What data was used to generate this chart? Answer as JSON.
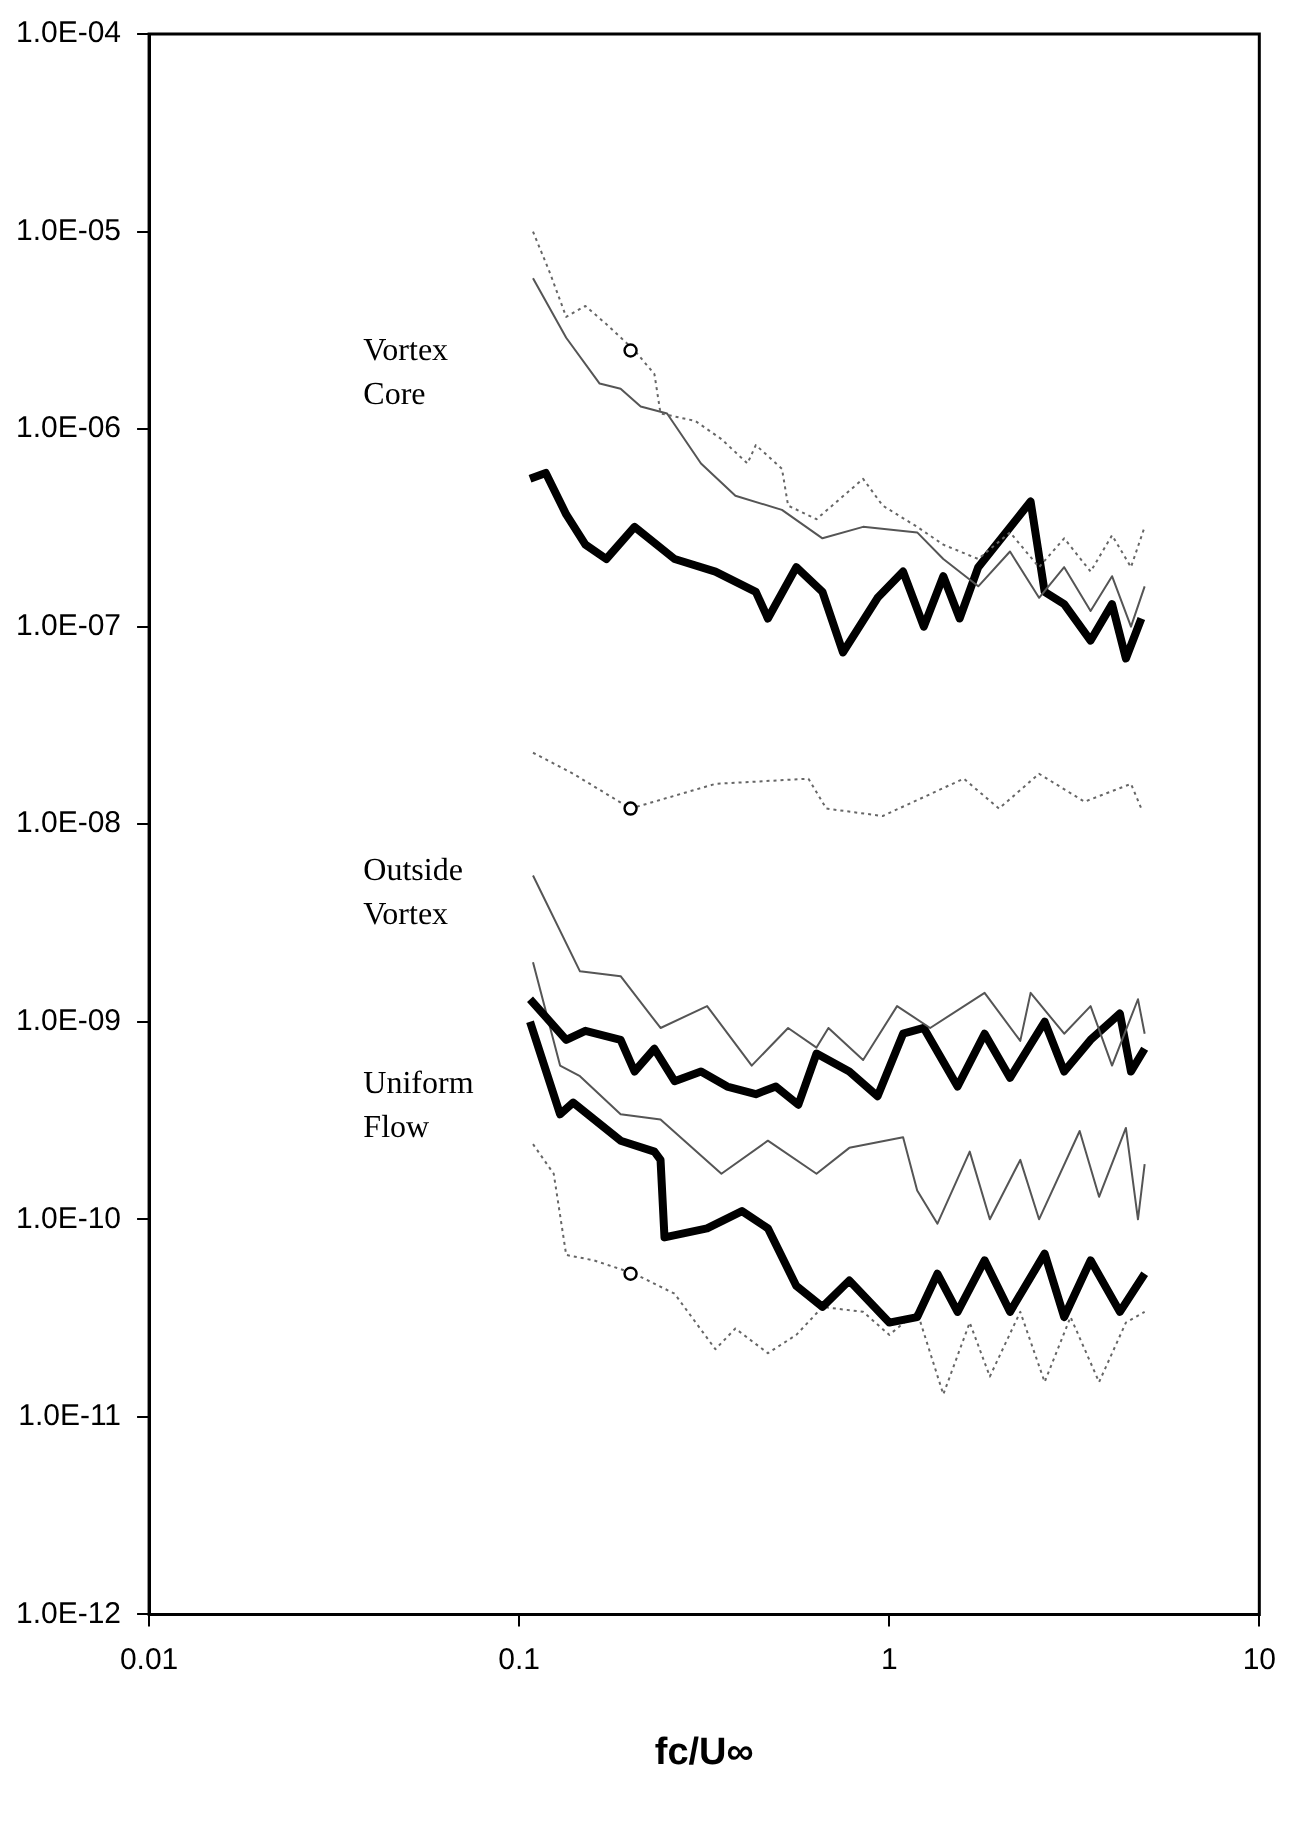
{
  "chart_data": {
    "type": "line",
    "xlabel": "fc/U∞",
    "log": "xy",
    "grid": false,
    "legend": false,
    "marker": "none",
    "xlim": [
      0.01,
      10
    ],
    "xticks": [
      0.01,
      0.1,
      1,
      10
    ],
    "ylim": [
      1e-12,
      0.0001
    ],
    "yticks": [
      {
        "value": 1e-12,
        "label": "1.0E-12"
      },
      {
        "value": 1e-11,
        "label": "1.0E-11"
      },
      {
        "value": 1e-10,
        "label": "1.0E-10"
      },
      {
        "value": 1e-09,
        "label": "1.0E-09"
      },
      {
        "value": 1e-08,
        "label": "1.0E-08"
      },
      {
        "value": 1e-07,
        "label": "1.0E-07"
      },
      {
        "value": 1e-06,
        "label": "1.0E-06"
      },
      {
        "value": 1e-05,
        "label": "1.0E-05"
      },
      {
        "value": 0.0001,
        "label": "1.0E-04"
      }
    ],
    "annotations": [
      "Vortex\nCore",
      "Outside\nVortex",
      "Uniform\nFlow"
    ],
    "series": [
      {
        "color": "#666666",
        "line_style": "dotted",
        "x": [
          0.109,
          0.121,
          0.134,
          0.151,
          0.172,
          0.205,
          0.232,
          0.241,
          0.299,
          0.352,
          0.414,
          0.436,
          0.513,
          0.533,
          0.636,
          0.85,
          0.96,
          1.19,
          1.4,
          1.74,
          2.12,
          2.54,
          2.97,
          3.5,
          4.0,
          4.5,
          4.9
        ],
        "values": [
          1e-05,
          6.2e-06,
          3.7e-06,
          4.2e-06,
          3.4e-06,
          2.5e-06,
          1.9e-06,
          1.2e-06,
          1.1e-06,
          8.9e-07,
          6.7e-07,
          8.3e-07,
          6.3e-07,
          4.1e-07,
          3.5e-07,
          5.6e-07,
          4.1e-07,
          3.2e-07,
          2.6e-07,
          2.2e-07,
          3e-07,
          2e-07,
          2.8e-07,
          1.9e-07,
          2.9e-07,
          2e-07,
          3.2e-07
        ]
      },
      {
        "color": "#555555",
        "line_style": "solid",
        "x": [
          0.109,
          0.134,
          0.165,
          0.188,
          0.213,
          0.251,
          0.31,
          0.384,
          0.513,
          0.66,
          0.85,
          1.19,
          1.4,
          1.74,
          2.12,
          2.54,
          2.97,
          3.5,
          4.0,
          4.5,
          4.9
        ],
        "values": [
          5.8e-06,
          2.9e-06,
          1.7e-06,
          1.6e-06,
          1.3e-06,
          1.2e-06,
          6.7e-07,
          4.6e-07,
          3.9e-07,
          2.8e-07,
          3.2e-07,
          3e-07,
          2.2e-07,
          1.6e-07,
          2.4e-07,
          1.4e-07,
          2e-07,
          1.2e-07,
          1.8e-07,
          1e-07,
          1.6e-07
        ]
      },
      {
        "color": "#000000",
        "line_style": "solid",
        "x": [
          0.107,
          0.118,
          0.134,
          0.151,
          0.172,
          0.205,
          0.263,
          0.339,
          0.436,
          0.47,
          0.561,
          0.66,
          0.75,
          0.93,
          1.09,
          1.24,
          1.4,
          1.55,
          1.74,
          2.41,
          2.63,
          2.97,
          3.5,
          4.0,
          4.36,
          4.8
        ],
        "values": [
          5.6e-07,
          6e-07,
          3.7e-07,
          2.6e-07,
          2.2e-07,
          3.2e-07,
          2.2e-07,
          1.9e-07,
          1.5e-07,
          1.1e-07,
          2e-07,
          1.5e-07,
          7.4e-08,
          1.4e-07,
          1.9e-07,
          1e-07,
          1.8e-07,
          1.1e-07,
          2e-07,
          4.3e-07,
          1.5e-07,
          1.3e-07,
          8.5e-08,
          1.3e-07,
          6.9e-08,
          1.1e-07
        ]
      },
      {
        "color": "#666666",
        "line_style": "dotted",
        "x": [
          0.109,
          0.14,
          0.2,
          0.339,
          0.605,
          0.676,
          0.96,
          1.59,
          1.98,
          2.54,
          3.37,
          4.5,
          4.8
        ],
        "values": [
          2.3e-08,
          1.8e-08,
          1.2e-08,
          1.6e-08,
          1.7e-08,
          1.2e-08,
          1.1e-08,
          1.7e-08,
          1.2e-08,
          1.8e-08,
          1.3e-08,
          1.6e-08,
          1.2e-08
        ]
      },
      {
        "color": "#555555",
        "line_style": "solid",
        "x": [
          0.109,
          0.146,
          0.188,
          0.241,
          0.322,
          0.425,
          0.533,
          0.636,
          0.685,
          0.85,
          1.05,
          1.29,
          1.81,
          2.26,
          2.41,
          2.97,
          3.5,
          4.0,
          4.7,
          4.9
        ],
        "values": [
          5.5e-09,
          1.8e-09,
          1.7e-09,
          9.3e-10,
          1.2e-09,
          6e-10,
          9.3e-10,
          7.4e-10,
          9.3e-10,
          6.4e-10,
          1.2e-09,
          9.3e-10,
          1.4e-09,
          8e-10,
          1.4e-09,
          8.7e-10,
          1.2e-09,
          6e-10,
          1.3e-09,
          8.7e-10
        ]
      },
      {
        "color": "#000000",
        "line_style": "solid",
        "x": [
          0.107,
          0.134,
          0.151,
          0.188,
          0.205,
          0.232,
          0.263,
          0.31,
          0.365,
          0.436,
          0.494,
          0.568,
          0.636,
          0.78,
          0.93,
          1.09,
          1.24,
          1.53,
          1.81,
          2.12,
          2.63,
          2.97,
          3.5,
          4.2,
          4.5,
          4.9
        ],
        "values": [
          1.3e-09,
          8.1e-10,
          9e-10,
          8.1e-10,
          5.6e-10,
          7.3e-10,
          5e-10,
          5.6e-10,
          4.7e-10,
          4.3e-10,
          4.7e-10,
          3.8e-10,
          6.9e-10,
          5.6e-10,
          4.2e-10,
          8.7e-10,
          9.3e-10,
          4.7e-10,
          8.7e-10,
          5.2e-10,
          1e-09,
          5.6e-10,
          8.1e-10,
          1.1e-09,
          5.6e-10,
          7.3e-10
        ]
      },
      {
        "color": "#555555",
        "line_style": "solid",
        "x": [
          0.109,
          0.129,
          0.146,
          0.188,
          0.241,
          0.352,
          0.47,
          0.636,
          0.78,
          1.09,
          1.19,
          1.35,
          1.65,
          1.87,
          2.26,
          2.54,
          3.27,
          3.69,
          4.36,
          4.7,
          4.9
        ],
        "values": [
          2e-09,
          6e-10,
          5.3e-10,
          3.4e-10,
          3.2e-10,
          1.7e-10,
          2.5e-10,
          1.7e-10,
          2.3e-10,
          2.6e-10,
          1.4e-10,
          9.5e-11,
          2.2e-10,
          1e-10,
          2e-10,
          1e-10,
          2.8e-10,
          1.3e-10,
          2.9e-10,
          1e-10,
          1.9e-10
        ]
      },
      {
        "color": "#000000",
        "line_style": "solid",
        "x": [
          0.107,
          0.129,
          0.14,
          0.188,
          0.232,
          0.241,
          0.247,
          0.322,
          0.4,
          0.47,
          0.561,
          0.66,
          0.78,
          1.0,
          1.19,
          1.35,
          1.53,
          1.81,
          2.12,
          2.63,
          2.97,
          3.5,
          4.2,
          4.9
        ],
        "values": [
          1e-09,
          3.4e-10,
          3.9e-10,
          2.5e-10,
          2.2e-10,
          2e-10,
          8.1e-11,
          9e-11,
          1.1e-10,
          9e-11,
          4.6e-11,
          3.6e-11,
          4.9e-11,
          3e-11,
          3.2e-11,
          5.3e-11,
          3.4e-11,
          6.2e-11,
          3.4e-11,
          6.7e-11,
          3.2e-11,
          6.2e-11,
          3.4e-11,
          5.3e-11
        ]
      },
      {
        "color": "#666666",
        "line_style": "dotted",
        "x": [
          0.109,
          0.124,
          0.134,
          0.159,
          0.205,
          0.263,
          0.339,
          0.384,
          0.47,
          0.561,
          0.66,
          0.85,
          1.0,
          1.19,
          1.4,
          1.65,
          1.87,
          2.26,
          2.63,
          3.09,
          3.69,
          4.36,
          4.9
        ],
        "values": [
          2.4e-10,
          1.7e-10,
          6.6e-11,
          6.2e-11,
          5.3e-11,
          4.2e-11,
          2.2e-11,
          2.8e-11,
          2.1e-11,
          2.6e-11,
          3.6e-11,
          3.4e-11,
          2.6e-11,
          3.4e-11,
          1.3e-11,
          3e-11,
          1.6e-11,
          3.4e-11,
          1.5e-11,
          3.2e-11,
          1.5e-11,
          3e-11,
          3.4e-11
        ]
      },
      {
        "type": "scatter",
        "marker": "circle",
        "color": "#000000",
        "x": [
          0.2,
          0.2,
          0.2
        ],
        "values": [
          2.5e-06,
          1.2e-08,
          5.3e-11
        ]
      }
    ]
  }
}
